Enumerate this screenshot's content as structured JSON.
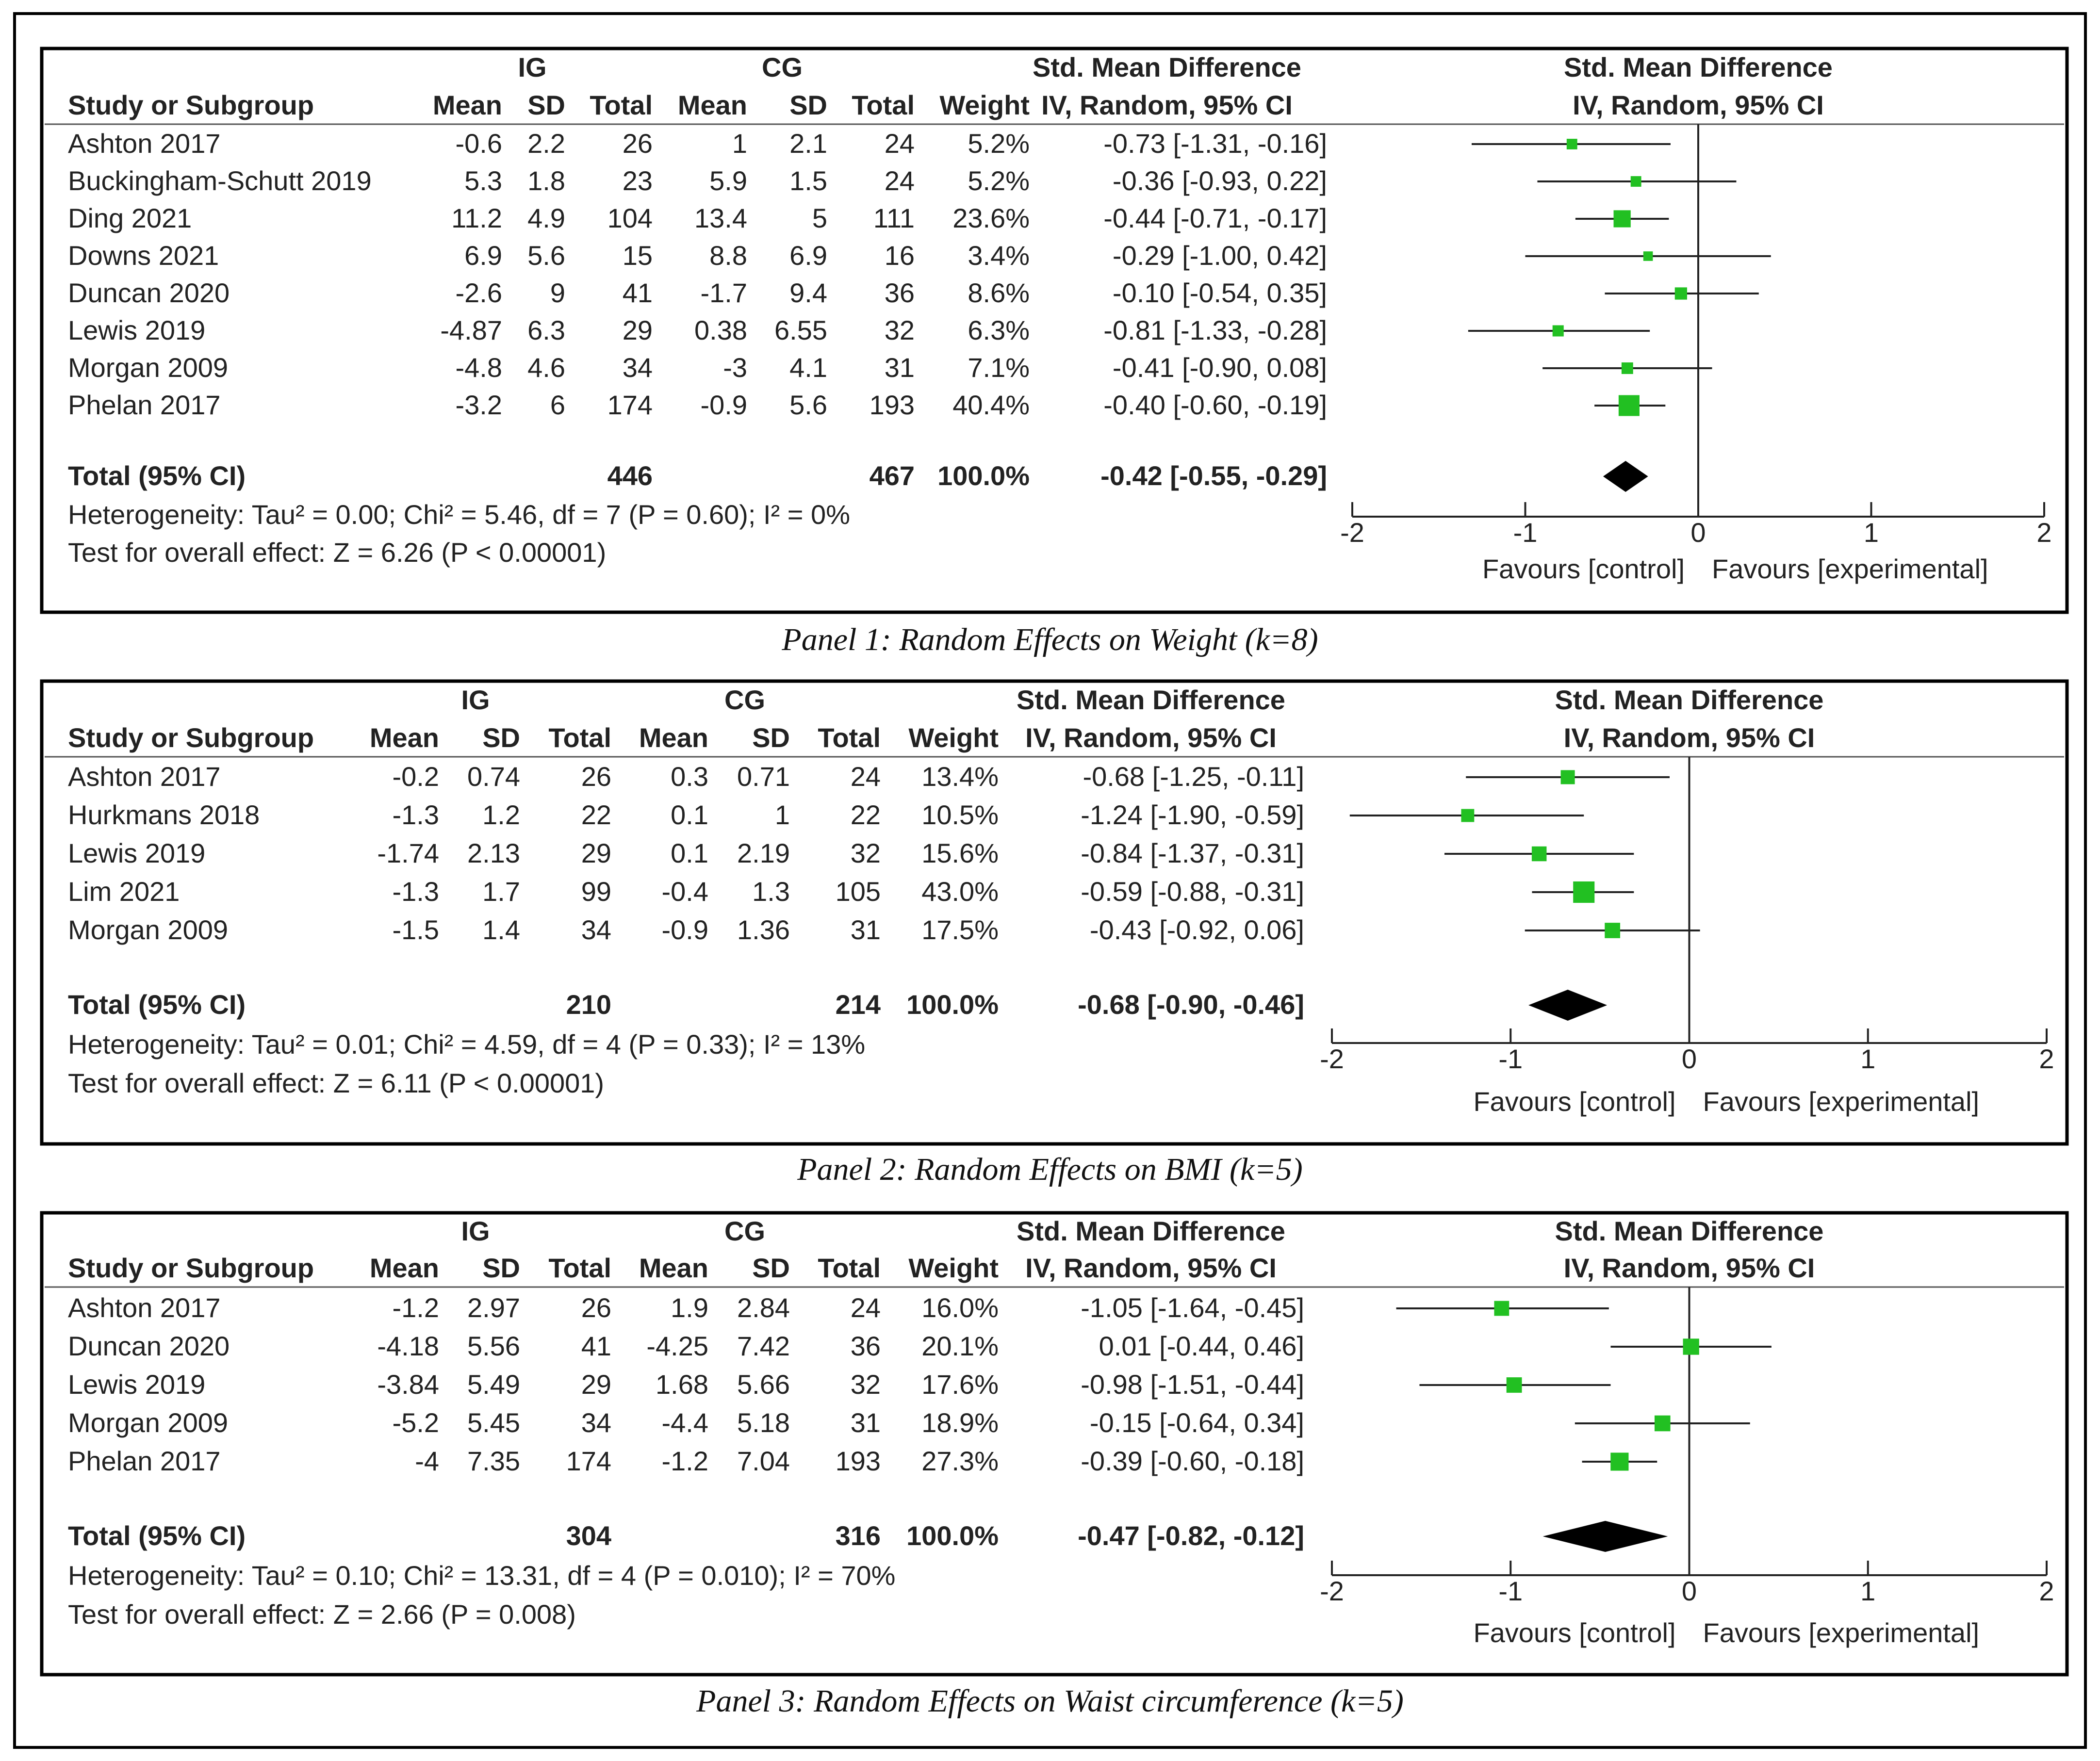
{
  "chart_data": [
    {
      "type": "forest",
      "caption": "Panel 1: Random Effects on Weight (k=8)",
      "xlim": [
        -2,
        2
      ],
      "xticks": [
        "-2",
        "-1",
        "0",
        "1",
        "2"
      ],
      "favours_left": "Favours [control]",
      "favours_right": "Favours [experimental]",
      "rows": [
        {
          "study": "Ashton 2017",
          "ig_mean": "-0.6",
          "ig_sd": "2.2",
          "ig_total": "26",
          "cg_mean": "1",
          "cg_sd": "2.1",
          "cg_total": "24",
          "weight": "5.2%",
          "ci_text": "-0.73 [-1.31, -0.16]",
          "est": -0.73,
          "lo": -1.31,
          "hi": -0.16,
          "w": 5.2
        },
        {
          "study": "Buckingham-Schutt 2019",
          "ig_mean": "5.3",
          "ig_sd": "1.8",
          "ig_total": "23",
          "cg_mean": "5.9",
          "cg_sd": "1.5",
          "cg_total": "24",
          "weight": "5.2%",
          "ci_text": "-0.36 [-0.93, 0.22]",
          "est": -0.36,
          "lo": -0.93,
          "hi": 0.22,
          "w": 5.2
        },
        {
          "study": "Ding 2021",
          "ig_mean": "11.2",
          "ig_sd": "4.9",
          "ig_total": "104",
          "cg_mean": "13.4",
          "cg_sd": "5",
          "cg_total": "111",
          "weight": "23.6%",
          "ci_text": "-0.44 [-0.71, -0.17]",
          "est": -0.44,
          "lo": -0.71,
          "hi": -0.17,
          "w": 23.6
        },
        {
          "study": "Downs 2021",
          "ig_mean": "6.9",
          "ig_sd": "5.6",
          "ig_total": "15",
          "cg_mean": "8.8",
          "cg_sd": "6.9",
          "cg_total": "16",
          "weight": "3.4%",
          "ci_text": "-0.29 [-1.00, 0.42]",
          "est": -0.29,
          "lo": -1.0,
          "hi": 0.42,
          "w": 3.4
        },
        {
          "study": "Duncan 2020",
          "ig_mean": "-2.6",
          "ig_sd": "9",
          "ig_total": "41",
          "cg_mean": "-1.7",
          "cg_sd": "9.4",
          "cg_total": "36",
          "weight": "8.6%",
          "ci_text": "-0.10 [-0.54, 0.35]",
          "est": -0.1,
          "lo": -0.54,
          "hi": 0.35,
          "w": 8.6
        },
        {
          "study": "Lewis 2019",
          "ig_mean": "-4.87",
          "ig_sd": "6.3",
          "ig_total": "29",
          "cg_mean": "0.38",
          "cg_sd": "6.55",
          "cg_total": "32",
          "weight": "6.3%",
          "ci_text": "-0.81 [-1.33, -0.28]",
          "est": -0.81,
          "lo": -1.33,
          "hi": -0.28,
          "w": 6.3
        },
        {
          "study": "Morgan 2009",
          "ig_mean": "-4.8",
          "ig_sd": "4.6",
          "ig_total": "34",
          "cg_mean": "-3",
          "cg_sd": "4.1",
          "cg_total": "31",
          "weight": "7.1%",
          "ci_text": "-0.41 [-0.90, 0.08]",
          "est": -0.41,
          "lo": -0.9,
          "hi": 0.08,
          "w": 7.1
        },
        {
          "study": "Phelan 2017",
          "ig_mean": "-3.2",
          "ig_sd": "6",
          "ig_total": "174",
          "cg_mean": "-0.9",
          "cg_sd": "5.6",
          "cg_total": "193",
          "weight": "40.4%",
          "ci_text": "-0.40 [-0.60, -0.19]",
          "est": -0.4,
          "lo": -0.6,
          "hi": -0.19,
          "w": 40.4
        }
      ],
      "total": {
        "label": "Total (95% CI)",
        "ig_total": "446",
        "cg_total": "467",
        "weight": "100.0%",
        "ci_text": "-0.42 [-0.55, -0.29]",
        "est": -0.42,
        "lo": -0.55,
        "hi": -0.29
      },
      "heterogeneity": "Heterogeneity: Tau² = 0.00; Chi² = 5.46, df = 7 (P = 0.60); I² = 0%",
      "overall": "Test for overall effect: Z = 6.26 (P < 0.00001)"
    },
    {
      "type": "forest",
      "caption": "Panel 2: Random Effects on BMI (k=5)",
      "xlim": [
        -2,
        2
      ],
      "xticks": [
        "-2",
        "-1",
        "0",
        "1",
        "2"
      ],
      "favours_left": "Favours [control]",
      "favours_right": "Favours [experimental]",
      "rows": [
        {
          "study": "Ashton 2017",
          "ig_mean": "-0.2",
          "ig_sd": "0.74",
          "ig_total": "26",
          "cg_mean": "0.3",
          "cg_sd": "0.71",
          "cg_total": "24",
          "weight": "13.4%",
          "ci_text": "-0.68 [-1.25, -0.11]",
          "est": -0.68,
          "lo": -1.25,
          "hi": -0.11,
          "w": 13.4
        },
        {
          "study": "Hurkmans 2018",
          "ig_mean": "-1.3",
          "ig_sd": "1.2",
          "ig_total": "22",
          "cg_mean": "0.1",
          "cg_sd": "1",
          "cg_total": "22",
          "weight": "10.5%",
          "ci_text": "-1.24 [-1.90, -0.59]",
          "est": -1.24,
          "lo": -1.9,
          "hi": -0.59,
          "w": 10.5
        },
        {
          "study": "Lewis 2019",
          "ig_mean": "-1.74",
          "ig_sd": "2.13",
          "ig_total": "29",
          "cg_mean": "0.1",
          "cg_sd": "2.19",
          "cg_total": "32",
          "weight": "15.6%",
          "ci_text": "-0.84 [-1.37, -0.31]",
          "est": -0.84,
          "lo": -1.37,
          "hi": -0.31,
          "w": 15.6
        },
        {
          "study": "Lim 2021",
          "ig_mean": "-1.3",
          "ig_sd": "1.7",
          "ig_total": "99",
          "cg_mean": "-0.4",
          "cg_sd": "1.3",
          "cg_total": "105",
          "weight": "43.0%",
          "ci_text": "-0.59 [-0.88, -0.31]",
          "est": -0.59,
          "lo": -0.88,
          "hi": -0.31,
          "w": 43.0
        },
        {
          "study": "Morgan 2009",
          "ig_mean": "-1.5",
          "ig_sd": "1.4",
          "ig_total": "34",
          "cg_mean": "-0.9",
          "cg_sd": "1.36",
          "cg_total": "31",
          "weight": "17.5%",
          "ci_text": "-0.43 [-0.92, 0.06]",
          "est": -0.43,
          "lo": -0.92,
          "hi": 0.06,
          "w": 17.5
        }
      ],
      "total": {
        "label": "Total (95% CI)",
        "ig_total": "210",
        "cg_total": "214",
        "weight": "100.0%",
        "ci_text": "-0.68 [-0.90, -0.46]",
        "est": -0.68,
        "lo": -0.9,
        "hi": -0.46
      },
      "heterogeneity": "Heterogeneity: Tau² = 0.01; Chi² = 4.59, df = 4 (P = 0.33); I² = 13%",
      "overall": "Test for overall effect: Z = 6.11 (P < 0.00001)"
    },
    {
      "type": "forest",
      "caption": "Panel 3: Random Effects on Waist circumference (k=5)",
      "xlim": [
        -2,
        2
      ],
      "xticks": [
        "-2",
        "-1",
        "0",
        "1",
        "2"
      ],
      "favours_left": "Favours [control]",
      "favours_right": "Favours [experimental]",
      "rows": [
        {
          "study": "Ashton 2017",
          "ig_mean": "-1.2",
          "ig_sd": "2.97",
          "ig_total": "26",
          "cg_mean": "1.9",
          "cg_sd": "2.84",
          "cg_total": "24",
          "weight": "16.0%",
          "ci_text": "-1.05 [-1.64, -0.45]",
          "est": -1.05,
          "lo": -1.64,
          "hi": -0.45,
          "w": 16.0
        },
        {
          "study": "Duncan 2020",
          "ig_mean": "-4.18",
          "ig_sd": "5.56",
          "ig_total": "41",
          "cg_mean": "-4.25",
          "cg_sd": "7.42",
          "cg_total": "36",
          "weight": "20.1%",
          "ci_text": "0.01 [-0.44, 0.46]",
          "est": 0.01,
          "lo": -0.44,
          "hi": 0.46,
          "w": 20.1
        },
        {
          "study": "Lewis 2019",
          "ig_mean": "-3.84",
          "ig_sd": "5.49",
          "ig_total": "29",
          "cg_mean": "1.68",
          "cg_sd": "5.66",
          "cg_total": "32",
          "weight": "17.6%",
          "ci_text": "-0.98 [-1.51, -0.44]",
          "est": -0.98,
          "lo": -1.51,
          "hi": -0.44,
          "w": 17.6
        },
        {
          "study": "Morgan 2009",
          "ig_mean": "-5.2",
          "ig_sd": "5.45",
          "ig_total": "34",
          "cg_mean": "-4.4",
          "cg_sd": "5.18",
          "cg_total": "31",
          "weight": "18.9%",
          "ci_text": "-0.15 [-0.64, 0.34]",
          "est": -0.15,
          "lo": -0.64,
          "hi": 0.34,
          "w": 18.9
        },
        {
          "study": "Phelan 2017",
          "ig_mean": "-4",
          "ig_sd": "7.35",
          "ig_total": "174",
          "cg_mean": "-1.2",
          "cg_sd": "7.04",
          "cg_total": "193",
          "weight": "27.3%",
          "ci_text": "-0.39 [-0.60, -0.18]",
          "est": -0.39,
          "lo": -0.6,
          "hi": -0.18,
          "w": 27.3
        }
      ],
      "total": {
        "label": "Total (95% CI)",
        "ig_total": "304",
        "cg_total": "316",
        "weight": "100.0%",
        "ci_text": "-0.47 [-0.82, -0.12]",
        "est": -0.47,
        "lo": -0.82,
        "hi": -0.12
      },
      "heterogeneity": "Heterogeneity: Tau² = 0.10; Chi² = 13.31, df = 4 (P = 0.010); I² = 70%",
      "overall": "Test for overall effect: Z = 2.66 (P = 0.008)"
    }
  ],
  "headers": {
    "ig": "IG",
    "cg": "CG",
    "smd": "Std. Mean Difference",
    "method": "IV, Random, 95% CI",
    "study": "Study or Subgroup",
    "mean": "Mean",
    "sd": "SD",
    "total": "Total",
    "weight": "Weight"
  },
  "colors": {
    "marker": "#22c022",
    "diamond": "#000000",
    "line": "#222222",
    "border": "#000000"
  }
}
